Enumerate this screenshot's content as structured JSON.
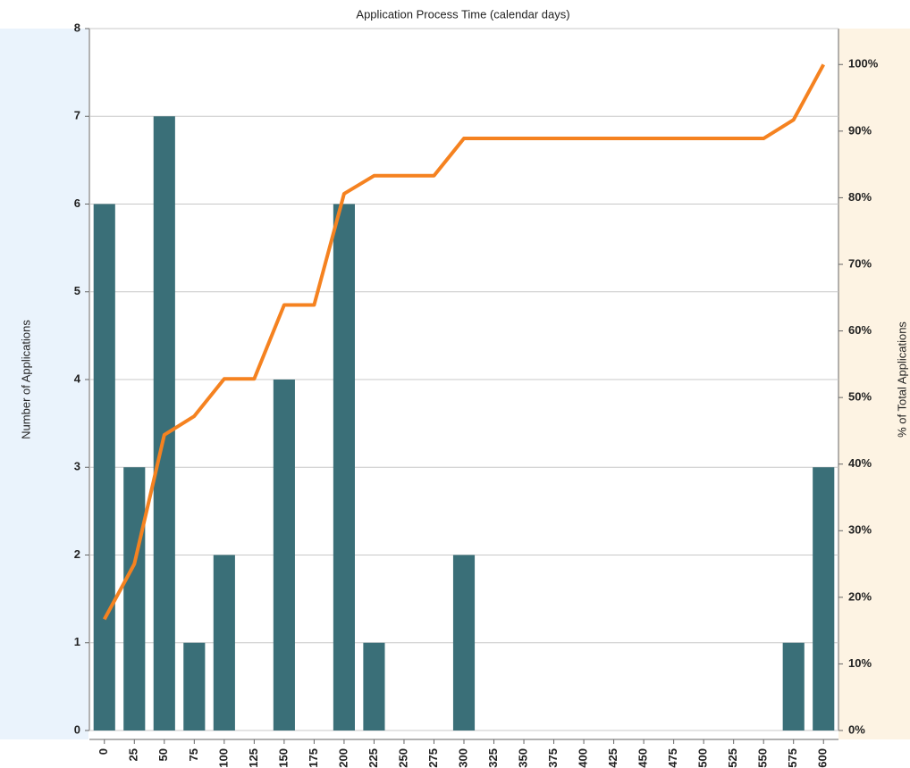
{
  "chart_data": {
    "type": "bar",
    "title": "Application Process Time (calendar days)",
    "y_label": "Number of Applications",
    "y2_label": "% of Total Applications",
    "categories": [
      0,
      25,
      50,
      75,
      100,
      125,
      150,
      175,
      200,
      225,
      250,
      275,
      300,
      325,
      350,
      375,
      400,
      425,
      450,
      475,
      500,
      525,
      550,
      575,
      600
    ],
    "series": [
      {
        "type": "bar",
        "color": "#3a6f78",
        "values": [
          6,
          3,
          7,
          1,
          2,
          0,
          4,
          0,
          6,
          1,
          0,
          0,
          2,
          0,
          0,
          0,
          0,
          0,
          0,
          0,
          0,
          0,
          0,
          1,
          3
        ]
      },
      {
        "type": "line",
        "axis": "y2",
        "color": "#f58220",
        "values": [
          16.7,
          25.0,
          44.4,
          47.2,
          52.8,
          52.8,
          63.9,
          63.9,
          80.6,
          83.3,
          83.3,
          83.3,
          88.9,
          88.9,
          88.9,
          88.9,
          88.9,
          88.9,
          88.9,
          88.9,
          88.9,
          88.9,
          88.9,
          91.7,
          100.0
        ]
      }
    ],
    "ylim": [
      0,
      8
    ],
    "yticks": [
      0,
      1,
      2,
      3,
      4,
      5,
      6,
      7,
      8
    ],
    "y2lim": [
      0,
      105.4
    ],
    "y2ticks": [
      {
        "value": 0,
        "label": "0%"
      },
      {
        "value": 10,
        "label": "10%"
      },
      {
        "value": 20,
        "label": "20%"
      },
      {
        "value": 30,
        "label": "30%"
      },
      {
        "value": 40,
        "label": "40%"
      },
      {
        "value": 50,
        "label": "50%"
      },
      {
        "value": 60,
        "label": "60%"
      },
      {
        "value": 70,
        "label": "70%"
      },
      {
        "value": 80,
        "label": "80%"
      },
      {
        "value": 90,
        "label": "90%"
      },
      {
        "value": 100,
        "label": "100%"
      }
    ],
    "grid": true
  }
}
